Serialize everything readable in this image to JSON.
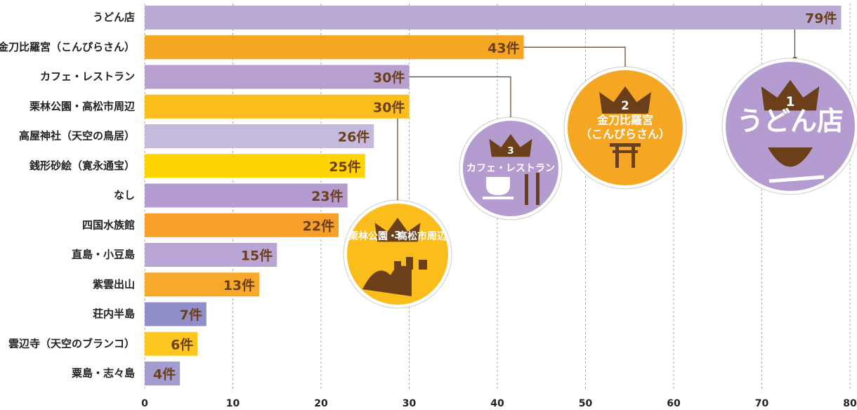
{
  "chart_data": {
    "type": "bar",
    "orientation": "horizontal",
    "categories": [
      "うどん店",
      "金刀比羅宮（こんぴらさん）",
      "カフェ・レストラン",
      "栗林公園・高松市周辺",
      "高屋神社（天空の鳥居）",
      "銭形砂絵（寛永通宝）",
      "なし",
      "四国水族館",
      "直島・小豆島",
      "紫雲出山",
      "荘内半島",
      "雲辺寺（天空のブランコ）",
      "粟島・志々島"
    ],
    "values": [
      79,
      43,
      30,
      30,
      26,
      25,
      23,
      22,
      15,
      13,
      7,
      6,
      4
    ],
    "value_labels": [
      "79件",
      "43件",
      "30件",
      "30件",
      "26件",
      "25件",
      "23件",
      "22件",
      "15件",
      "13件",
      "7件",
      "6件",
      "4件"
    ],
    "colors": [
      "#b9aad6",
      "#f5a623",
      "#b7a0d0",
      "#fbbd1c",
      "#c5badd",
      "#ffd400",
      "#b49cd0",
      "#f6a02a",
      "#b9a6d5",
      "#f8a82b",
      "#908fc9",
      "#fdc71f",
      "#a29cd1"
    ],
    "xlim": [
      0,
      80
    ],
    "xticks": [
      0,
      10,
      20,
      30,
      40,
      50,
      60,
      70,
      80
    ],
    "grid": true,
    "badges": [
      {
        "rank": 1,
        "lines": [
          "うどん店"
        ],
        "color": "#b49cd0",
        "bar": 0
      },
      {
        "rank": 2,
        "lines": [
          "金刀比羅宮",
          "（こんぴらさん）"
        ],
        "color": "#f5a623",
        "bar": 1
      },
      {
        "rank": 3,
        "lines": [
          "カフェ・レストラン"
        ],
        "color": "#b49cd0",
        "bar": 2
      },
      {
        "rank": 3,
        "lines": [
          "栗林公園・高松市周辺"
        ],
        "color": "#fbbd1c",
        "bar": 3
      }
    ]
  }
}
